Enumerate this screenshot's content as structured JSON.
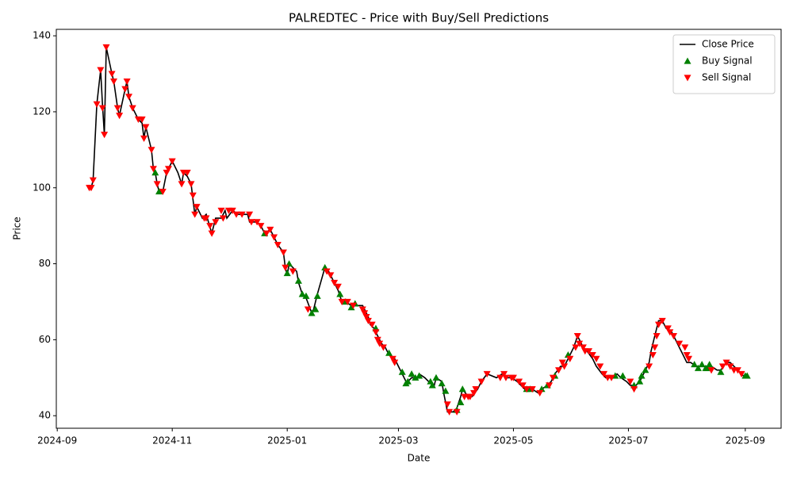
{
  "chart_data": {
    "type": "line",
    "title": "PALREDTEC - Price with Buy/Sell Predictions",
    "x_label": "Date",
    "y_label": "Price",
    "xlim": [
      -0.5,
      384
    ],
    "ylim": [
      36.7,
      141.7
    ],
    "xticks": [
      {
        "value": 0,
        "label": "2024-09"
      },
      {
        "value": 61,
        "label": "2024-11"
      },
      {
        "value": 122,
        "label": "2025-01"
      },
      {
        "value": 181,
        "label": "2025-03"
      },
      {
        "value": 242,
        "label": "2025-05"
      },
      {
        "value": 303,
        "label": "2025-07"
      },
      {
        "value": 365,
        "label": "2025-09"
      }
    ],
    "yticks": [
      40,
      60,
      80,
      100,
      120,
      140
    ],
    "legend": "upper right",
    "series": [
      {
        "name": "Close Price",
        "type": "line",
        "color": "#000000",
        "x": [
          17,
          18,
          19,
          21,
          23,
          24,
          25,
          26,
          29,
          30,
          32,
          33,
          36,
          37,
          38,
          40,
          43,
          45,
          46,
          47,
          50,
          51,
          52,
          53,
          54,
          56,
          58,
          59,
          61,
          64,
          66,
          67,
          69,
          71,
          72,
          73,
          74,
          77,
          79,
          82,
          84,
          87,
          89,
          90,
          93,
          96,
          98,
          101,
          102,
          106,
          108,
          110,
          113,
          115,
          117,
          120,
          121,
          122,
          123,
          127,
          128,
          130,
          132,
          135,
          136,
          138,
          142,
          144,
          146,
          149,
          151,
          153,
          156,
          159,
          162,
          163,
          165,
          166,
          168,
          170,
          172,
          174,
          176,
          179,
          181,
          183,
          185,
          186,
          188,
          191,
          192,
          195,
          197,
          200,
          201,
          204,
          205,
          207,
          210,
          212,
          214,
          215,
          218,
          220,
          223,
          225,
          228,
          233,
          236,
          239,
          241,
          244,
          246,
          248,
          252,
          255,
          257,
          260,
          262,
          264,
          267,
          269,
          272,
          274,
          276,
          279,
          281,
          284,
          286,
          289,
          291,
          294,
          297,
          299,
          302,
          304,
          307,
          309,
          311,
          314,
          315,
          317,
          319,
          321,
          323,
          326,
          328,
          330,
          332,
          334,
          336,
          339,
          341,
          343,
          345,
          347,
          350,
          352,
          355,
          357,
          359,
          361,
          363,
          365
        ],
        "values": [
          100,
          100,
          102,
          122,
          131,
          122,
          114,
          137,
          130,
          128,
          121,
          119,
          126,
          128,
          124,
          121,
          118,
          117,
          113,
          116,
          110,
          105,
          104,
          101,
          99,
          99,
          104,
          105,
          107,
          104,
          101,
          104,
          103,
          101,
          97,
          93,
          95,
          92,
          93,
          88,
          92,
          92,
          94,
          92,
          94,
          93,
          93,
          93,
          91,
          91,
          90,
          88,
          89,
          87,
          85,
          83,
          79,
          77,
          80,
          78,
          75,
          72,
          71,
          67,
          68,
          72,
          79,
          78,
          76,
          73,
          70,
          70,
          69,
          69,
          69,
          68,
          66,
          64,
          63,
          61,
          59,
          58,
          56,
          55,
          53,
          51,
          49,
          49,
          50,
          50,
          51,
          50,
          49,
          48,
          50,
          49,
          46,
          41,
          41,
          42,
          45,
          47,
          45,
          45,
          47,
          49,
          51,
          50,
          51,
          50,
          50,
          49,
          48,
          47,
          47,
          46,
          47,
          48,
          49,
          51,
          53,
          53,
          56,
          58,
          61,
          58,
          57,
          55,
          53,
          51,
          50,
          50,
          51,
          50,
          49,
          48,
          48,
          49,
          51,
          54,
          57,
          61,
          65,
          65,
          63,
          62,
          60,
          58,
          56,
          54,
          54,
          53,
          53,
          53,
          53,
          53,
          52,
          52,
          54,
          54,
          53,
          52,
          51,
          50
        ]
      },
      {
        "name": "Buy Signal",
        "type": "scatter",
        "marker": "^",
        "color": "#008000",
        "x": [
          52,
          54,
          110,
          122,
          123,
          128,
          130,
          132,
          135,
          137,
          138,
          142,
          150,
          153,
          156,
          158,
          169,
          176,
          183,
          185,
          186,
          188,
          190,
          192,
          198,
          199,
          201,
          204,
          206,
          212,
          214,
          215,
          249,
          251,
          257,
          260,
          264,
          271,
          296,
          300,
          306,
          309,
          310,
          312,
          338,
          340,
          342,
          344,
          345,
          346,
          352,
          365,
          366
        ],
        "values": [
          104,
          99,
          88,
          77.5,
          80,
          75.5,
          72,
          71.5,
          67,
          68,
          71.5,
          79,
          72,
          70,
          68.5,
          69.5,
          63,
          56.5,
          51.5,
          48.5,
          49,
          51,
          50,
          50.5,
          49,
          48,
          50,
          48.5,
          46.5,
          41.5,
          43.5,
          47,
          47,
          47,
          47,
          48,
          50.5,
          56,
          50.5,
          50.5,
          48,
          49,
          50.5,
          52,
          53.5,
          52.5,
          53.5,
          52.5,
          52.5,
          53.5,
          51.5,
          50.5,
          50.5
        ]
      },
      {
        "name": "Sell Signal",
        "type": "scatter",
        "marker": "v",
        "color": "#ff0000",
        "x": [
          17,
          18,
          19,
          21,
          23,
          24,
          25,
          26,
          29,
          30,
          32,
          33,
          36,
          37,
          38,
          40,
          43,
          45,
          46,
          47,
          50,
          51,
          53,
          56,
          58,
          59,
          61,
          66,
          67,
          69,
          71,
          72,
          73,
          74,
          78,
          79,
          81,
          82,
          84,
          87,
          88,
          91,
          93,
          95,
          98,
          102,
          103,
          106,
          108,
          111,
          113,
          115,
          117,
          120,
          121,
          125,
          133,
          143,
          145,
          147,
          149,
          151,
          154,
          157,
          162,
          163,
          164,
          165,
          167,
          169,
          170,
          171,
          173,
          178,
          179,
          207,
          208,
          212,
          216,
          218,
          219,
          221,
          222,
          225,
          228,
          235,
          237,
          238,
          241,
          242,
          245,
          247,
          249,
          252,
          256,
          261,
          263,
          266,
          268,
          269,
          272,
          275,
          276,
          277,
          279,
          280,
          282,
          284,
          286,
          288,
          290,
          292,
          294,
          304,
          306,
          314,
          316,
          317,
          318,
          319,
          321,
          324,
          325,
          327,
          330,
          333,
          334,
          335,
          347,
          353,
          355,
          357,
          359,
          361,
          363
        ],
        "values": [
          100,
          100,
          102,
          122,
          131,
          121,
          114,
          137,
          130,
          128,
          121,
          119,
          126,
          128,
          124,
          121,
          118,
          118,
          113,
          116,
          110,
          105,
          101,
          99,
          104,
          105,
          107,
          101,
          104,
          104,
          101,
          98,
          93,
          95,
          92,
          92,
          90,
          88,
          91,
          94,
          92,
          94,
          94,
          93,
          93,
          93,
          91,
          91,
          90,
          88,
          89,
          87,
          85,
          83,
          79,
          78,
          68,
          78,
          77,
          75,
          74,
          70,
          70,
          69,
          68,
          67,
          66,
          65,
          64,
          62,
          60,
          59,
          58,
          55,
          54,
          43,
          41,
          41,
          45,
          45,
          45,
          46,
          47,
          49,
          51,
          50,
          51,
          50,
          50,
          50,
          49,
          48,
          47,
          47,
          46,
          48,
          50,
          52,
          54,
          53,
          55,
          58,
          61,
          59,
          58,
          57,
          57,
          56,
          55,
          53,
          51,
          50,
          50,
          49,
          47,
          53,
          56,
          58,
          61,
          64,
          65,
          63,
          62,
          61,
          59,
          58,
          56,
          55,
          52,
          53,
          54,
          53,
          52,
          52,
          51
        ]
      }
    ]
  }
}
